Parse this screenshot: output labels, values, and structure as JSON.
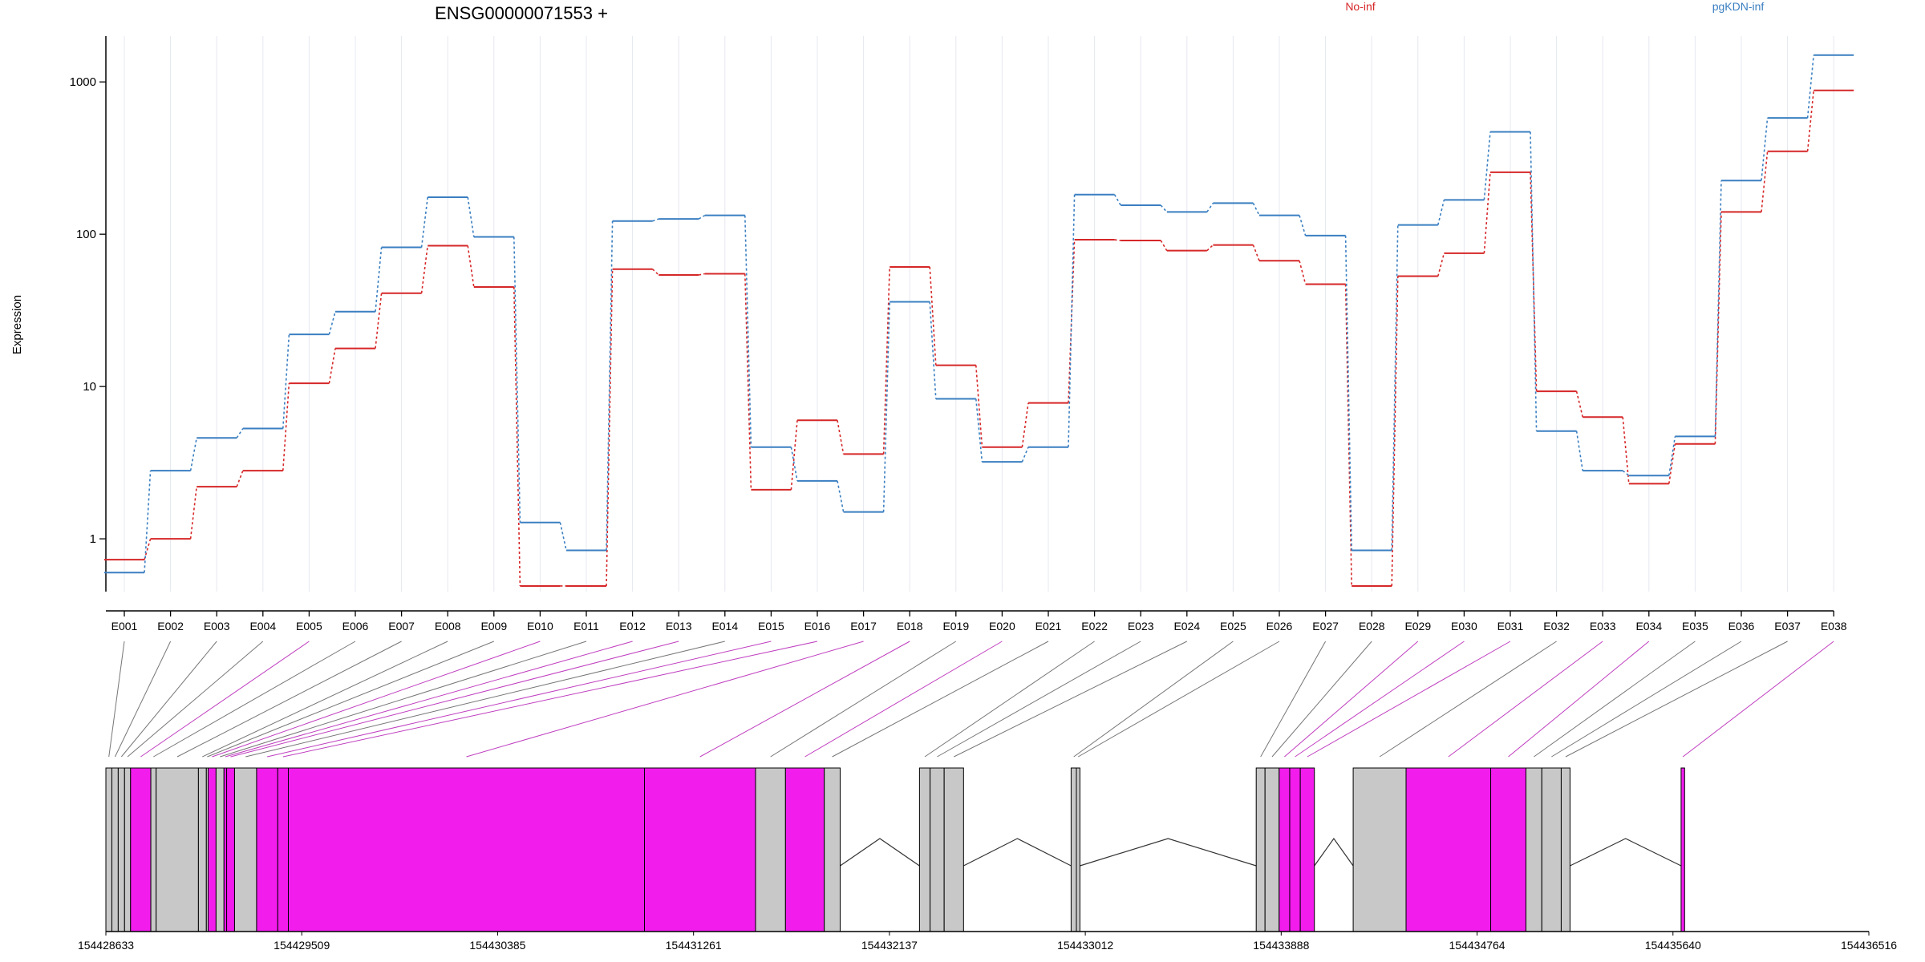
{
  "title": "ENSG00000071553 +",
  "ylabel": "Expression",
  "legend": [
    {
      "name": "No-inf",
      "color": "#d62728"
    },
    {
      "name": "pgKDN-inf",
      "color": "#3a7fc1"
    }
  ],
  "colors": {
    "gene_model_highlight": "#f21ced",
    "gene_model_default": "#c8c8c8",
    "grid": "#e6e8f0",
    "axis": "#000000"
  },
  "chart_data": {
    "type": "line",
    "title": "ENSG00000071553 +",
    "xlabel": "",
    "ylabel": "Expression",
    "yscale": "log",
    "ylim": [
      0.45,
      2000
    ],
    "yticks": [
      1,
      10,
      100,
      1000
    ],
    "ytick_labels": [
      "1",
      "10",
      "100",
      "1000"
    ],
    "grid": "vertical",
    "legend_position": "top",
    "categories": [
      "E001",
      "E002",
      "E003",
      "E004",
      "E005",
      "E006",
      "E007",
      "E008",
      "E009",
      "E010",
      "E011",
      "E012",
      "E013",
      "E014",
      "E015",
      "E016",
      "E017",
      "E018",
      "E019",
      "E020",
      "E021",
      "E022",
      "E023",
      "E024",
      "E025",
      "E026",
      "E027",
      "E028",
      "E029",
      "E030",
      "E031",
      "E032",
      "E033",
      "E034",
      "E035",
      "E036",
      "E037",
      "E038"
    ],
    "series": [
      {
        "name": "No-inf",
        "color": "#d62728",
        "values": [
          0.73,
          1.0,
          2.2,
          2.8,
          10.5,
          17.8,
          41,
          84,
          45,
          0.49,
          0.49,
          59,
          54,
          55,
          2.1,
          6.0,
          3.6,
          61,
          13.8,
          4.0,
          7.8,
          92,
          91,
          78,
          85,
          67,
          47,
          0.49,
          53,
          75,
          255,
          9.3,
          6.3,
          2.3,
          4.2,
          140,
          350,
          880
        ]
      },
      {
        "name": "pgKDN-inf",
        "color": "#3a7fc1",
        "values": [
          0.6,
          2.8,
          4.6,
          5.3,
          22,
          31,
          82,
          175,
          96,
          1.28,
          0.84,
          122,
          126,
          133,
          4.0,
          2.4,
          1.5,
          36,
          8.3,
          3.2,
          4.0,
          182,
          155,
          140,
          160,
          133,
          98,
          0.84,
          115,
          168,
          470,
          5.1,
          2.8,
          2.6,
          4.7,
          225,
          580,
          1500
        ]
      }
    ]
  },
  "gene_model": {
    "coord_ticks": [
      "154428633",
      "154429509",
      "154430385",
      "154431261",
      "154432137",
      "154433012",
      "154433888",
      "154434764",
      "154435640",
      "154436516"
    ],
    "exons": [
      {
        "id": "E001",
        "start": 0.0,
        "end": 0.34,
        "highlight": false
      },
      {
        "id": "E002",
        "start": 0.34,
        "end": 0.7,
        "highlight": false
      },
      {
        "id": "E003",
        "start": 0.7,
        "end": 1.06,
        "highlight": false
      },
      {
        "id": "E004",
        "start": 1.06,
        "end": 1.4,
        "highlight": false
      },
      {
        "id": "E005",
        "start": 1.4,
        "end": 2.55,
        "highlight": true
      },
      {
        "id": "E006",
        "start": 2.55,
        "end": 2.85,
        "highlight": false
      },
      {
        "id": "E007",
        "start": 2.85,
        "end": 5.25,
        "highlight": false
      },
      {
        "id": "E008",
        "start": 5.25,
        "end": 5.7,
        "highlight": false
      },
      {
        "id": "E009",
        "start": 5.7,
        "end": 5.8,
        "highlight": false
      },
      {
        "id": "E010",
        "start": 5.8,
        "end": 6.25,
        "highlight": true
      },
      {
        "id": "E011",
        "start": 6.25,
        "end": 6.7,
        "highlight": false
      },
      {
        "id": "E012",
        "start": 6.7,
        "end": 6.85,
        "highlight": true
      },
      {
        "id": "E013",
        "start": 6.85,
        "end": 7.3,
        "highlight": true
      },
      {
        "id": "E014",
        "start": 7.3,
        "end": 8.55,
        "highlight": false
      },
      {
        "id": "E015",
        "start": 8.55,
        "end": 9.75,
        "highlight": true
      },
      {
        "id": "E016",
        "start": 9.75,
        "end": 10.35,
        "highlight": true
      },
      {
        "id": "E017",
        "start": 10.35,
        "end": 30.55,
        "highlight": true
      },
      {
        "id": "E018",
        "start": 30.55,
        "end": 36.85,
        "highlight": true
      },
      {
        "id": "E019",
        "start": 36.85,
        "end": 38.55,
        "highlight": false
      },
      {
        "id": "E020",
        "start": 38.55,
        "end": 40.75,
        "highlight": true
      },
      {
        "id": "E021",
        "start": 40.75,
        "end": 41.65,
        "highlight": false
      },
      {
        "id": "E022",
        "start": 46.15,
        "end": 46.75,
        "highlight": false
      },
      {
        "id": "E023",
        "start": 46.75,
        "end": 47.55,
        "highlight": false
      },
      {
        "id": "E024",
        "start": 47.55,
        "end": 48.65,
        "highlight": false
      },
      {
        "id": "E025",
        "start": 54.75,
        "end": 55.05,
        "highlight": false
      },
      {
        "id": "E026",
        "start": 55.05,
        "end": 55.25,
        "highlight": false
      },
      {
        "id": "E027",
        "start": 65.25,
        "end": 65.75,
        "highlight": false
      },
      {
        "id": "E028",
        "start": 65.75,
        "end": 66.55,
        "highlight": false
      },
      {
        "id": "E029",
        "start": 66.55,
        "end": 67.15,
        "highlight": true
      },
      {
        "id": "E030",
        "start": 67.15,
        "end": 67.75,
        "highlight": true
      },
      {
        "id": "E031",
        "start": 67.75,
        "end": 68.55,
        "highlight": true
      },
      {
        "id": "E032",
        "start": 70.75,
        "end": 73.75,
        "highlight": false
      },
      {
        "id": "E033",
        "start": 73.75,
        "end": 78.55,
        "highlight": true
      },
      {
        "id": "E034",
        "start": 78.55,
        "end": 80.55,
        "highlight": true
      },
      {
        "id": "E035",
        "start": 80.55,
        "end": 81.45,
        "highlight": false
      },
      {
        "id": "E036",
        "start": 81.45,
        "end": 82.55,
        "highlight": false
      },
      {
        "id": "E037",
        "start": 82.55,
        "end": 83.05,
        "highlight": false
      },
      {
        "id": "E038",
        "start": 89.35,
        "end": 89.55,
        "highlight": true
      }
    ]
  }
}
